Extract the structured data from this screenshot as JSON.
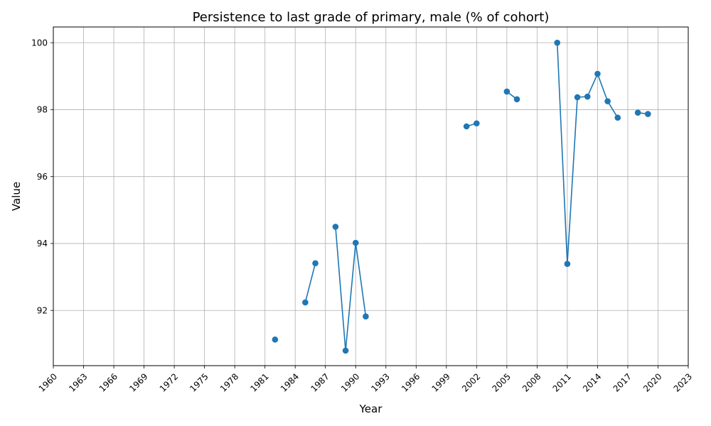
{
  "chart_data": {
    "type": "line",
    "title": "Persistence to last grade of primary, male (% of cohort)",
    "xlabel": "Year",
    "ylabel": "Value",
    "xlim": [
      1960,
      2023
    ],
    "ylim": [
      90.35,
      100.47
    ],
    "x_ticks": [
      1960,
      1963,
      1966,
      1969,
      1972,
      1975,
      1978,
      1981,
      1984,
      1987,
      1990,
      1993,
      1996,
      1999,
      2002,
      2005,
      2008,
      2011,
      2014,
      2017,
      2020,
      2023
    ],
    "y_ticks": [
      92,
      94,
      96,
      98,
      100
    ],
    "grid": true,
    "series": [
      {
        "color": "#1f77b4",
        "marker": "circle",
        "points": [
          {
            "x": 1982,
            "y": 91.13
          },
          {
            "x": 1985,
            "y": 92.24
          },
          {
            "x": 1986,
            "y": 93.41
          },
          {
            "x": 1988,
            "y": 94.5
          },
          {
            "x": 1989,
            "y": 90.8
          },
          {
            "x": 1990,
            "y": 94.02
          },
          {
            "x": 1991,
            "y": 91.82
          },
          {
            "x": 2001,
            "y": 97.5
          },
          {
            "x": 2002,
            "y": 97.59
          },
          {
            "x": 2005,
            "y": 98.54
          },
          {
            "x": 2006,
            "y": 98.31
          },
          {
            "x": 2010,
            "y": 100.0
          },
          {
            "x": 2011,
            "y": 93.39
          },
          {
            "x": 2012,
            "y": 98.37
          },
          {
            "x": 2013,
            "y": 98.39
          },
          {
            "x": 2014,
            "y": 99.07
          },
          {
            "x": 2015,
            "y": 98.25
          },
          {
            "x": 2016,
            "y": 97.76
          },
          {
            "x": 2018,
            "y": 97.91
          },
          {
            "x": 2019,
            "y": 97.87
          }
        ]
      }
    ]
  }
}
